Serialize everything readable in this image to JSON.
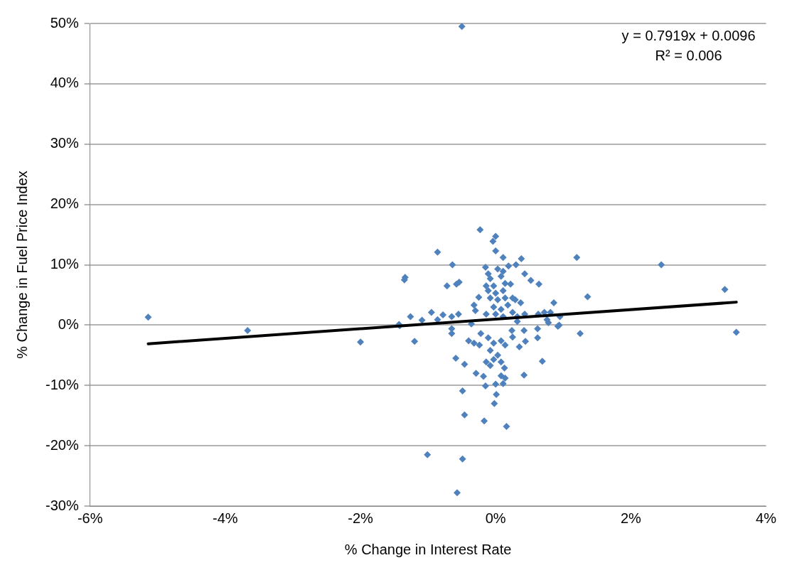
{
  "chart_data": {
    "type": "scatter",
    "xlabel": "% Change in Interest Rate",
    "ylabel": "% Change in Fuel Price Index",
    "annotations": [
      "y = 0.7919x + 0.0096",
      "R² = 0.006"
    ],
    "xlim": [
      -6,
      4
    ],
    "ylim": [
      -30,
      50
    ],
    "xticks": [
      {
        "value": -6,
        "label": "-6%"
      },
      {
        "value": -4,
        "label": "-4%"
      },
      {
        "value": -2,
        "label": "-2%"
      },
      {
        "value": 0,
        "label": "0%"
      },
      {
        "value": 2,
        "label": "2%"
      },
      {
        "value": 4,
        "label": "4%"
      }
    ],
    "yticks": [
      {
        "value": -30,
        "label": "-30%"
      },
      {
        "value": -20,
        "label": "-20%"
      },
      {
        "value": -10,
        "label": "-10%"
      },
      {
        "value": 0,
        "label": "0%"
      },
      {
        "value": 10,
        "label": "10%"
      },
      {
        "value": 20,
        "label": "20%"
      },
      {
        "value": 30,
        "label": "30%"
      },
      {
        "value": 40,
        "label": "40%"
      },
      {
        "value": 50,
        "label": "50%"
      }
    ],
    "grid": "y",
    "legend": false,
    "marker": "diamond",
    "series": [
      {
        "color": "#4f81bd",
        "x": [
          -5.14,
          -3.67,
          -2.0,
          -0.5,
          3.39,
          3.56,
          2.45,
          1.2,
          1.36,
          1.25,
          0.86,
          -0.23,
          0.0,
          -0.04,
          0.0,
          -0.86,
          0.11,
          0.38,
          -0.64,
          -0.15,
          0.19,
          0.3,
          0.43,
          0.52,
          0.64,
          -1.34,
          -1.35,
          -0.72,
          -0.58,
          -0.54,
          -0.25,
          0.37,
          -1.26,
          -0.95,
          -0.78,
          -1.09,
          -0.55,
          -1.43,
          -0.86,
          -0.65,
          -0.32,
          -0.3,
          0.43,
          0.63,
          0.72,
          0.81,
          0.76,
          0.95,
          0.94,
          -0.11,
          -0.08,
          0.03,
          0.08,
          0.11,
          -0.14,
          -0.03,
          0.14,
          0.22,
          -0.11,
          0.0,
          0.11,
          -0.08,
          0.03,
          0.14,
          0.25,
          0.29,
          -0.03,
          0.08,
          0.18,
          -0.14,
          0.0,
          0.11,
          0.25,
          0.32,
          -1.42,
          -1.2,
          -0.65,
          -0.65,
          -0.4,
          -0.32,
          -0.24,
          -0.22,
          -0.11,
          -0.03,
          0.08,
          0.14,
          0.24,
          0.25,
          0.42,
          0.62,
          0.62,
          0.44,
          0.35,
          0.92,
          0.78,
          0.32,
          -0.36,
          -0.08,
          0.03,
          -0.03,
          -0.14,
          -0.08,
          0.08,
          -0.59,
          -0.46,
          0.69,
          0.13,
          -0.29,
          -0.18,
          0.08,
          0.14,
          0.42,
          0.11,
          0.0,
          -0.15,
          -0.49,
          0.01,
          -0.02,
          -0.46,
          -0.17,
          0.16,
          -1.01,
          -0.49,
          -0.57
        ],
        "values": [
          1.3,
          -0.9,
          -2.8,
          49.5,
          5.9,
          -1.2,
          10.0,
          11.2,
          4.7,
          -1.4,
          3.7,
          15.8,
          14.7,
          13.9,
          12.3,
          12.1,
          11.2,
          11.0,
          10.0,
          9.6,
          9.8,
          10.0,
          8.5,
          7.4,
          6.8,
          7.9,
          7.5,
          6.5,
          6.8,
          7.1,
          4.6,
          3.7,
          1.4,
          2.1,
          1.7,
          0.8,
          1.8,
          0.1,
          0.9,
          1.4,
          3.3,
          2.4,
          1.8,
          1.8,
          2.1,
          2.1,
          0.9,
          1.4,
          0.0,
          8.5,
          7.7,
          9.3,
          8.1,
          8.9,
          6.5,
          6.5,
          6.9,
          6.8,
          5.7,
          5.3,
          5.7,
          4.5,
          4.2,
          4.5,
          4.5,
          4.2,
          3.0,
          2.6,
          3.3,
          1.8,
          1.8,
          1.4,
          2.1,
          1.4,
          -0.1,
          -2.7,
          -0.6,
          -1.4,
          -2.6,
          -3.0,
          -3.3,
          -1.4,
          -2.1,
          -3.0,
          -2.6,
          -3.3,
          -0.9,
          -2.0,
          -0.9,
          -0.6,
          -2.1,
          -2.7,
          -3.6,
          -0.2,
          0.4,
          0.6,
          0.2,
          -4.2,
          -5.0,
          -5.7,
          -6.1,
          -6.7,
          -6.1,
          -5.5,
          -6.5,
          -6.0,
          -7.1,
          -8.0,
          -8.5,
          -8.4,
          -8.8,
          -8.3,
          -9.7,
          -9.8,
          -10.1,
          -10.9,
          -11.5,
          -13.0,
          -14.9,
          -15.9,
          -16.8,
          -21.5,
          -22.2,
          -27.8
        ]
      },
      {
        "type": "line",
        "color": "#000000",
        "marker": "none",
        "x": [
          -5.14,
          3.56
        ],
        "values": [
          -3.1,
          3.8
        ]
      }
    ]
  }
}
